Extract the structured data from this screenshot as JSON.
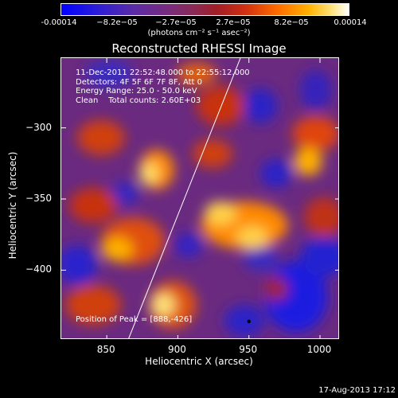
{
  "colorbar": {
    "ticks": [
      "-0.00014",
      "−8.2e−05",
      "−2.7e−05",
      "2.7e−05",
      "8.2e−05",
      "0.00014"
    ],
    "units": "(photons cm⁻² s⁻¹ asec⁻²)"
  },
  "chart_data": {
    "type": "heatmap",
    "title": "Reconstructed RHESSI Image",
    "xlabel": "Heliocentric X (arcsec)",
    "ylabel": "Heliocentric Y (arcsec)",
    "xlim": [
      818,
      1014
    ],
    "ylim": [
      -449,
      -251
    ],
    "xticks": [
      "850",
      "900",
      "950",
      "1000"
    ],
    "yticks": [
      "−300",
      "−350",
      "−400"
    ],
    "xtick_values": [
      850,
      900,
      950,
      1000
    ],
    "ytick_values": [
      -300,
      -350,
      -400
    ],
    "colorbar_range": [
      -0.00014,
      0.00014
    ],
    "peak": {
      "x": 888,
      "y": -426
    },
    "limb_line": {
      "x": [
        865,
        944
      ],
      "y": [
        -449,
        -251
      ]
    }
  },
  "info": {
    "time_range": "11-Dec-2011 22:52:48.000 to 22:55:12.000",
    "detectors": "Detectors: 4F 5F 6F 7F 8F, Att 0",
    "energy": "Energy Range: 25.0 - 50.0 keV",
    "method": "Clean    Total counts: 2.60E+03",
    "peak_label": "Position of Peak = [888,-426]"
  },
  "footer": {
    "date": "17-Aug-2013 17:12"
  }
}
